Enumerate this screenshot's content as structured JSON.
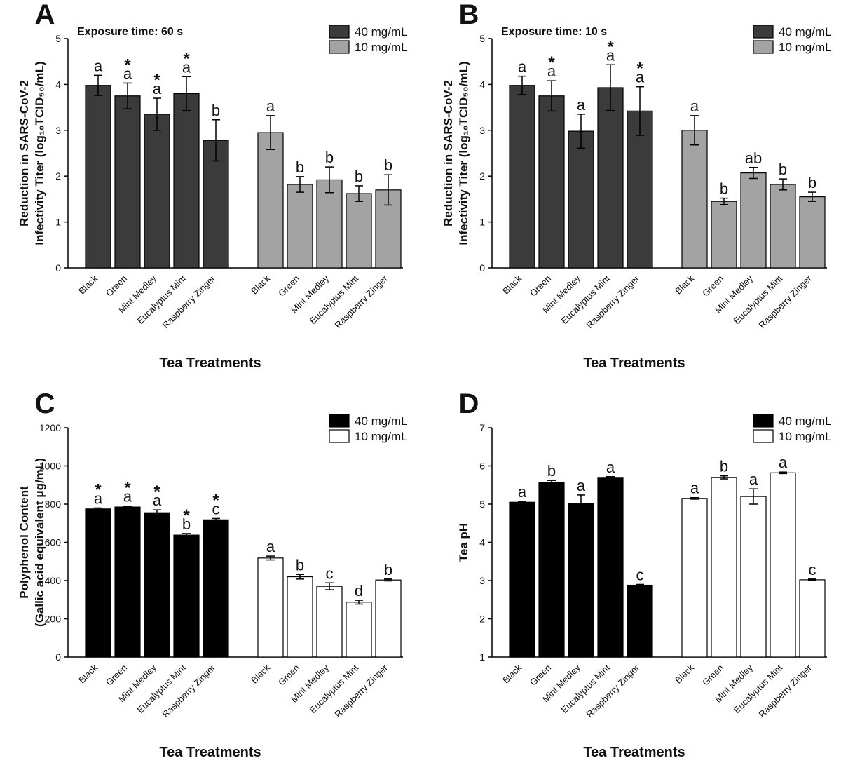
{
  "chart_data": [
    {
      "type": "bar",
      "panel": "A",
      "subtitle": "Exposure time: 60 s",
      "ylabel": [
        "Reduction in SARS-CoV-2",
        "Infectivity Titer (log₁₀TCID₅₀/mL)"
      ],
      "xlabel": "Tea Treatments",
      "categories": [
        "Black",
        "Green",
        "Mint Medley",
        "Eucalyptus Mint",
        "Raspberry Zinger"
      ],
      "ylim": [
        0,
        5
      ],
      "yticks": [
        0,
        1,
        2,
        3,
        4,
        5
      ],
      "legend": "upper right",
      "series": [
        {
          "name": "40 mg/mL",
          "color": "#3b3b3b",
          "values": [
            3.98,
            3.75,
            3.35,
            3.8,
            2.78
          ],
          "errors": [
            0.22,
            0.28,
            0.35,
            0.37,
            0.45
          ],
          "letters": [
            "a",
            "a",
            "a",
            "a",
            "b"
          ],
          "stars": [
            null,
            "*",
            "*",
            "*",
            null
          ]
        },
        {
          "name": "10 mg/mL",
          "color": "#a3a3a3",
          "values": [
            2.95,
            1.82,
            1.92,
            1.62,
            1.7
          ],
          "errors": [
            0.37,
            0.17,
            0.28,
            0.17,
            0.33
          ],
          "letters": [
            "a",
            "b",
            "b",
            "b",
            "b"
          ],
          "stars": [
            null,
            null,
            null,
            null,
            null
          ]
        }
      ]
    },
    {
      "type": "bar",
      "panel": "B",
      "subtitle": "Exposure time: 10 s",
      "ylabel": [
        "Reduction in SARS-CoV-2",
        "Infectivity Titer (log₁₀TCID₅₀/mL)"
      ],
      "xlabel": "Tea Treatments",
      "categories": [
        "Black",
        "Green",
        "Mint Medley",
        "Eucalyptus Mint",
        "Raspberry Zinger"
      ],
      "ylim": [
        0,
        5
      ],
      "yticks": [
        0,
        1,
        2,
        3,
        4,
        5
      ],
      "legend": "upper right",
      "series": [
        {
          "name": "40 mg/mL",
          "color": "#3b3b3b",
          "values": [
            3.98,
            3.75,
            2.98,
            3.93,
            3.42
          ],
          "errors": [
            0.2,
            0.33,
            0.37,
            0.5,
            0.53
          ],
          "letters": [
            "a",
            "a",
            "a",
            "a",
            "a"
          ],
          "stars": [
            null,
            "*",
            null,
            "*",
            "*"
          ]
        },
        {
          "name": "10 mg/mL",
          "color": "#a3a3a3",
          "values": [
            3.0,
            1.45,
            2.07,
            1.82,
            1.55
          ],
          "errors": [
            0.32,
            0.07,
            0.12,
            0.12,
            0.1
          ],
          "letters": [
            "a",
            "b",
            "ab",
            "b",
            "b"
          ],
          "stars": [
            null,
            null,
            null,
            null,
            null
          ]
        }
      ]
    },
    {
      "type": "bar",
      "panel": "C",
      "ylabel": [
        "Polyphenol Content",
        "(Gallic acid equivalent μg/mL)"
      ],
      "xlabel": "Tea Treatments",
      "categories": [
        "Black",
        "Green",
        "Mint Medley",
        "Eucalyptus Mint",
        "Raspberry Zinger"
      ],
      "ylim": [
        0,
        1200
      ],
      "yticks": [
        0,
        200,
        400,
        600,
        800,
        1000,
        1200
      ],
      "legend": "upper right",
      "series": [
        {
          "name": "40 mg/mL",
          "color": "#000000",
          "values": [
            775,
            785,
            755,
            638,
            718
          ],
          "errors": [
            5,
            5,
            15,
            8,
            7
          ],
          "letters": [
            "a",
            "a",
            "a",
            "b",
            "c"
          ],
          "stars": [
            "*",
            "*",
            "*",
            "*",
            "*"
          ]
        },
        {
          "name": "10 mg/mL",
          "color": "#ffffff",
          "values": [
            518,
            420,
            370,
            287,
            403
          ],
          "errors": [
            10,
            12,
            18,
            10,
            5
          ],
          "letters": [
            "a",
            "b",
            "c",
            "d",
            "b"
          ],
          "stars": [
            null,
            null,
            null,
            null,
            null
          ]
        }
      ]
    },
    {
      "type": "bar",
      "panel": "D",
      "ylabel": [
        "Tea pH"
      ],
      "xlabel": "Tea Treatments",
      "categories": [
        "Black",
        "Green",
        "Mint Medley",
        "Eucalyptus Mint",
        "Raspberry Zinger"
      ],
      "ylim": [
        1,
        7
      ],
      "yticks": [
        1,
        2,
        3,
        4,
        5,
        6,
        7
      ],
      "legend": "upper right",
      "series": [
        {
          "name": "40 mg/mL",
          "color": "#000000",
          "values": [
            5.05,
            5.57,
            5.02,
            5.7,
            2.88
          ],
          "errors": [
            0.02,
            0.05,
            0.22,
            0.02,
            0.02
          ],
          "letters": [
            "a",
            "b",
            "a",
            "a",
            "c"
          ],
          "stars": [
            null,
            null,
            null,
            null,
            null
          ]
        },
        {
          "name": "10 mg/mL",
          "color": "#ffffff",
          "values": [
            5.15,
            5.7,
            5.2,
            5.82,
            3.02
          ],
          "errors": [
            0.02,
            0.04,
            0.2,
            0.02,
            0.02
          ],
          "letters": [
            "a",
            "b",
            "a",
            "a",
            "c"
          ],
          "stars": [
            null,
            null,
            null,
            null,
            null
          ]
        }
      ]
    }
  ]
}
